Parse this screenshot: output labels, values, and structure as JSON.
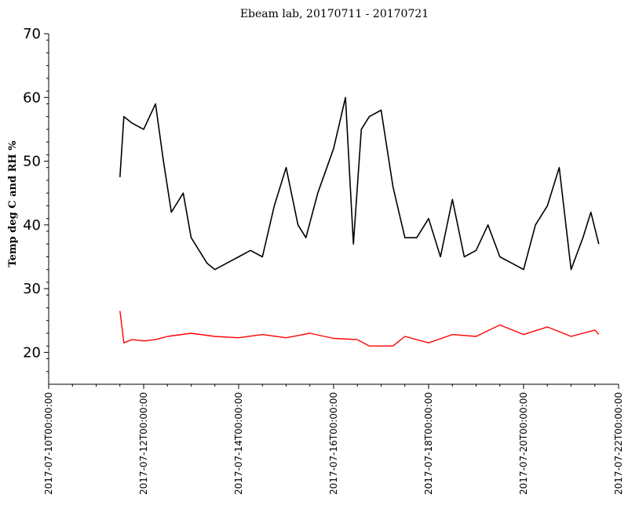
{
  "chart_data": {
    "type": "line",
    "title": "Ebeam lab, 20170711 - 20170721",
    "xlabel": "",
    "ylabel": "Temp deg C and RH %",
    "ylim": [
      15,
      70
    ],
    "yticks": [
      20,
      30,
      40,
      50,
      60,
      70
    ],
    "xlim": [
      "2017-07-10T00:00:00",
      "2017-07-22T00:00:00"
    ],
    "xticks": [
      "2017-07-10T00:00:00",
      "2017-07-12T00:00:00",
      "2017-07-14T00:00:00",
      "2017-07-16T00:00:00",
      "2017-07-18T00:00:00",
      "2017-07-20T00:00:00",
      "2017-07-22T00:00:00"
    ],
    "grid": false,
    "legend": "none",
    "series": [
      {
        "color": "#000000",
        "x": [
          "2017-07-11T12:00:00",
          "2017-07-11T14:00:00",
          "2017-07-11T18:00:00",
          "2017-07-12T00:00:00",
          "2017-07-12T06:00:00",
          "2017-07-12T10:00:00",
          "2017-07-12T14:00:00",
          "2017-07-12T20:00:00",
          "2017-07-13T00:00:00",
          "2017-07-13T04:00:00",
          "2017-07-13T08:00:00",
          "2017-07-13T12:00:00",
          "2017-07-13T18:00:00",
          "2017-07-14T00:00:00",
          "2017-07-14T06:00:00",
          "2017-07-14T12:00:00",
          "2017-07-14T18:00:00",
          "2017-07-15T00:00:00",
          "2017-07-15T06:00:00",
          "2017-07-15T10:00:00",
          "2017-07-15T16:00:00",
          "2017-07-16T00:00:00",
          "2017-07-16T06:00:00",
          "2017-07-16T10:00:00",
          "2017-07-16T14:00:00",
          "2017-07-16T18:00:00",
          "2017-07-17T00:00:00",
          "2017-07-17T06:00:00",
          "2017-07-17T12:00:00",
          "2017-07-17T18:00:00",
          "2017-07-18T00:00:00",
          "2017-07-18T06:00:00",
          "2017-07-18T12:00:00",
          "2017-07-18T18:00:00",
          "2017-07-19T00:00:00",
          "2017-07-19T06:00:00",
          "2017-07-19T12:00:00",
          "2017-07-19T18:00:00",
          "2017-07-20T00:00:00",
          "2017-07-20T06:00:00",
          "2017-07-20T12:00:00",
          "2017-07-20T18:00:00",
          "2017-07-21T00:00:00",
          "2017-07-21T06:00:00",
          "2017-07-21T10:00:00",
          "2017-07-21T14:00:00"
        ],
        "y": [
          47.5,
          57,
          56,
          55,
          59,
          50,
          42,
          45,
          38,
          36,
          34,
          33,
          34,
          35,
          36,
          35,
          43,
          49,
          40,
          38,
          45,
          52,
          60,
          37,
          55,
          57,
          58,
          46,
          38,
          38,
          41,
          35,
          44,
          35,
          36,
          40,
          35,
          34,
          33,
          40,
          43,
          49,
          33,
          38,
          42,
          37
        ]
      },
      {
        "color": "#ff0000",
        "x": [
          "2017-07-11T12:00:00",
          "2017-07-11T14:00:00",
          "2017-07-11T18:00:00",
          "2017-07-12T00:00:00",
          "2017-07-12T06:00:00",
          "2017-07-12T12:00:00",
          "2017-07-13T00:00:00",
          "2017-07-13T12:00:00",
          "2017-07-14T00:00:00",
          "2017-07-14T12:00:00",
          "2017-07-15T00:00:00",
          "2017-07-15T12:00:00",
          "2017-07-16T00:00:00",
          "2017-07-16T12:00:00",
          "2017-07-16T18:00:00",
          "2017-07-17T06:00:00",
          "2017-07-17T12:00:00",
          "2017-07-18T00:00:00",
          "2017-07-18T12:00:00",
          "2017-07-19T00:00:00",
          "2017-07-19T12:00:00",
          "2017-07-20T00:00:00",
          "2017-07-20T12:00:00",
          "2017-07-21T00:00:00",
          "2017-07-21T12:00:00",
          "2017-07-21T14:00:00"
        ],
        "y": [
          26.5,
          21.5,
          22,
          21.8,
          22,
          22.5,
          23,
          22.5,
          22.3,
          22.8,
          22.3,
          23,
          22.2,
          22,
          21,
          21,
          22.5,
          21.5,
          22.8,
          22.5,
          24.3,
          22.8,
          24,
          22.5,
          23.5,
          22.8
        ]
      }
    ]
  }
}
